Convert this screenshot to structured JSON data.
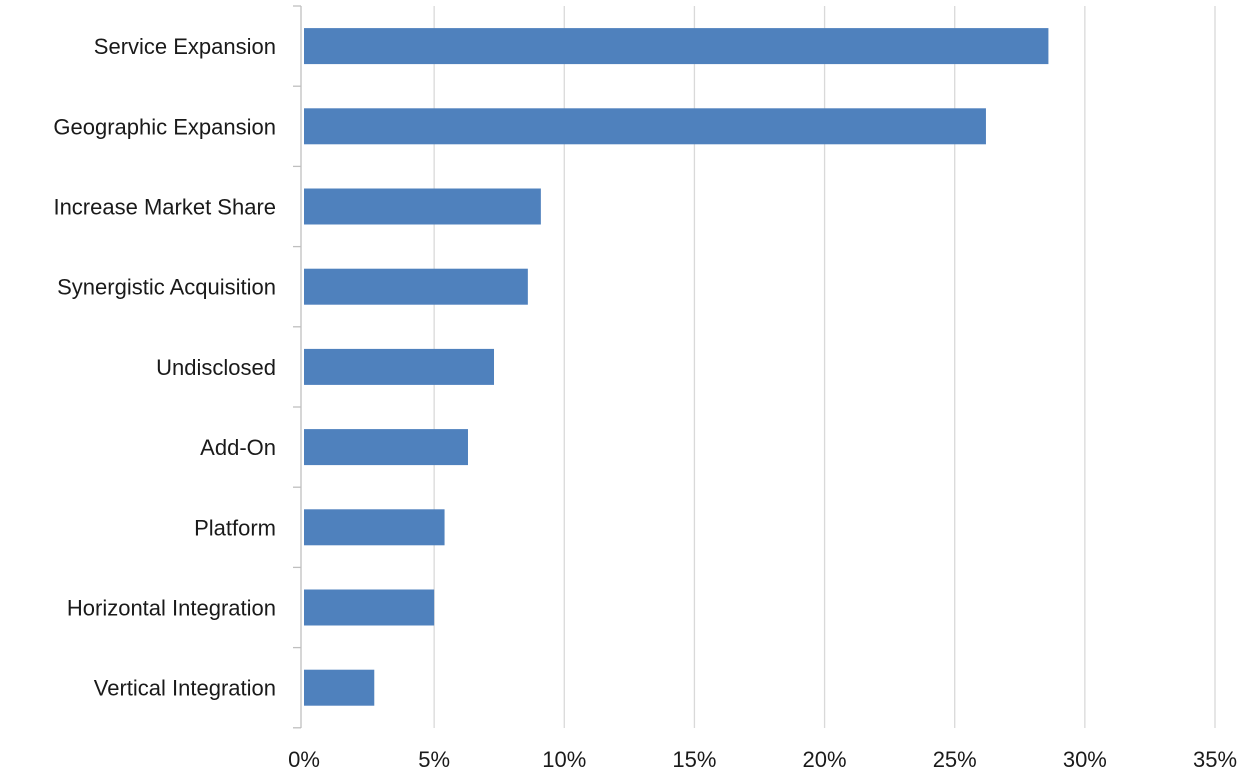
{
  "chart_data": {
    "type": "bar",
    "orientation": "horizontal",
    "title": "",
    "xlabel": "",
    "ylabel": "",
    "categories": [
      "Service Expansion",
      "Geographic Expansion",
      "Increase Market Share",
      "Synergistic Acquisition",
      "Undisclosed",
      "Add-On",
      "Platform",
      "Horizontal Integration",
      "Vertical Integration"
    ],
    "values": [
      28.6,
      26.2,
      9.1,
      8.6,
      7.3,
      6.3,
      5.4,
      5.0,
      2.7
    ],
    "xlim": [
      0,
      35
    ],
    "x_ticks": [
      0,
      5,
      10,
      15,
      20,
      25,
      30,
      35
    ],
    "x_tick_labels": [
      "0%",
      "5%",
      "10%",
      "15%",
      "20%",
      "25%",
      "30%",
      "35%"
    ],
    "grid": "vertical",
    "legend": "none",
    "colors": {
      "bar": "#4f81bd",
      "grid": "#d9d9d9",
      "axis": "#bfbfbf",
      "text": "#1a1a1a"
    }
  }
}
